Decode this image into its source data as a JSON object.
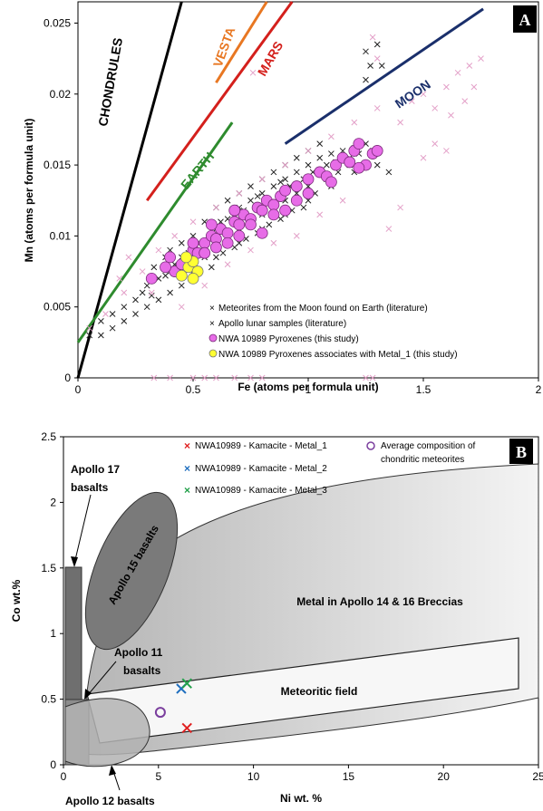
{
  "chart_data": [
    {
      "panel": "A",
      "type": "scatter",
      "xlabel": "Fe (atoms per formula unit)",
      "ylabel": "Mn (atoms per formula unit)",
      "xlim": [
        0,
        2
      ],
      "ylim": [
        0,
        0.0265
      ],
      "xticks": [
        "0",
        "0.5",
        "1",
        "1.5",
        "2"
      ],
      "yticks": [
        "0",
        "0.005",
        "0.01",
        "0.015",
        "0.02",
        "0.025"
      ],
      "legend_position": "bottom-right",
      "trend_lines": [
        {
          "name": "CHONDRULES",
          "color": "#000000",
          "x": [
            0,
            0.45
          ],
          "y": [
            0,
            0.0265
          ]
        },
        {
          "name": "VESTA",
          "color": "#e87722",
          "x": [
            0.6,
            0.82
          ],
          "y": [
            0.0208,
            0.0265
          ]
        },
        {
          "name": "MARS",
          "color": "#d4201c",
          "x": [
            0.3,
            0.93
          ],
          "y": [
            0.0125,
            0.0265
          ]
        },
        {
          "name": "EARTH",
          "color": "#2e8b2e",
          "x": [
            0,
            0.67
          ],
          "y": [
            0.0025,
            0.018
          ]
        },
        {
          "name": "MOON",
          "color": "#1a2f6b",
          "x": [
            0.9,
            1.76
          ],
          "y": [
            0.0165,
            0.026
          ]
        }
      ],
      "series": [
        {
          "name": "Meteorites from the Moon found on Earth (literature)",
          "marker": "x",
          "color": "#222222",
          "points": [
            [
              0.05,
              0.003
            ],
            [
              0.1,
              0.004
            ],
            [
              0.15,
              0.0045
            ],
            [
              0.2,
              0.005
            ],
            [
              0.25,
              0.0055
            ],
            [
              0.28,
              0.006
            ],
            [
              0.3,
              0.0065
            ],
            [
              0.32,
              0.0058
            ],
            [
              0.35,
              0.007
            ],
            [
              0.38,
              0.0072
            ],
            [
              0.4,
              0.0075
            ],
            [
              0.42,
              0.008
            ],
            [
              0.45,
              0.0085
            ],
            [
              0.48,
              0.0088
            ],
            [
              0.5,
              0.009
            ],
            [
              0.52,
              0.0095
            ],
            [
              0.55,
              0.0092
            ],
            [
              0.58,
              0.01
            ],
            [
              0.6,
              0.0105
            ],
            [
              0.62,
              0.011
            ],
            [
              0.65,
              0.0112
            ],
            [
              0.68,
              0.0115
            ],
            [
              0.7,
              0.012
            ],
            [
              0.72,
              0.0118
            ],
            [
              0.75,
              0.0125
            ],
            [
              0.78,
              0.0128
            ],
            [
              0.8,
              0.013
            ],
            [
              0.82,
              0.0125
            ],
            [
              0.85,
              0.0135
            ],
            [
              0.88,
              0.0138
            ],
            [
              0.9,
              0.014
            ],
            [
              0.92,
              0.0135
            ],
            [
              0.95,
              0.0145
            ],
            [
              0.98,
              0.014
            ],
            [
              1.0,
              0.015
            ],
            [
              1.02,
              0.0145
            ],
            [
              1.05,
              0.0155
            ],
            [
              1.08,
              0.015
            ],
            [
              1.1,
              0.0158
            ],
            [
              1.12,
              0.0152
            ],
            [
              1.15,
              0.016
            ],
            [
              1.18,
              0.0155
            ],
            [
              1.2,
              0.0162
            ],
            [
              1.22,
              0.0158
            ],
            [
              1.25,
              0.0165
            ],
            [
              1.28,
              0.016
            ],
            [
              1.25,
              0.023
            ],
            [
              1.27,
              0.022
            ],
            [
              1.3,
              0.0235
            ],
            [
              1.25,
              0.021
            ],
            [
              1.32,
              0.022
            ],
            [
              0.45,
              0.0065
            ],
            [
              0.5,
              0.0075
            ],
            [
              0.55,
              0.0085
            ],
            [
              0.6,
              0.0095
            ],
            [
              0.65,
              0.01
            ],
            [
              0.7,
              0.0105
            ],
            [
              0.75,
              0.011
            ],
            [
              0.8,
              0.0115
            ],
            [
              0.85,
              0.012
            ],
            [
              0.9,
              0.0125
            ],
            [
              0.95,
              0.013
            ],
            [
              1.0,
              0.0135
            ],
            [
              0.35,
              0.0055
            ],
            [
              0.4,
              0.006
            ],
            [
              0.3,
              0.005
            ],
            [
              0.25,
              0.0045
            ],
            [
              0.2,
              0.004
            ],
            [
              0.15,
              0.0035
            ],
            [
              0.1,
              0.003
            ],
            [
              0.55,
              0.011
            ],
            [
              0.6,
              0.012
            ],
            [
              0.65,
              0.0125
            ],
            [
              0.7,
              0.013
            ],
            [
              0.75,
              0.0135
            ],
            [
              0.8,
              0.014
            ],
            [
              0.85,
              0.0145
            ],
            [
              0.9,
              0.015
            ],
            [
              0.95,
              0.0155
            ],
            [
              1.0,
              0.016
            ],
            [
              1.05,
              0.0165
            ],
            [
              0.5,
              0.01
            ],
            [
              0.45,
              0.0095
            ],
            [
              0.4,
              0.009
            ],
            [
              0.38,
              0.0085
            ],
            [
              0.33,
              0.0078
            ],
            [
              0.6,
              0.0085
            ],
            [
              0.7,
              0.0095
            ],
            [
              0.8,
              0.0105
            ],
            [
              0.9,
              0.0115
            ],
            [
              1.0,
              0.0125
            ],
            [
              1.1,
              0.0135
            ],
            [
              1.2,
              0.0145
            ],
            [
              1.3,
              0.015
            ],
            [
              1.35,
              0.0145
            ],
            [
              0.58,
              0.0078
            ],
            [
              0.63,
              0.0088
            ],
            [
              0.68,
              0.0092
            ],
            [
              0.73,
              0.0098
            ],
            [
              0.78,
              0.0102
            ],
            [
              0.83,
              0.0108
            ],
            [
              0.88,
              0.0112
            ],
            [
              0.93,
              0.0118
            ],
            [
              0.98,
              0.012
            ],
            [
              1.03,
              0.013
            ],
            [
              1.08,
              0.014
            ],
            [
              1.13,
              0.0145
            ],
            [
              1.18,
              0.015
            ]
          ]
        },
        {
          "name": "Apollo lunar samples (literature)",
          "marker": "x",
          "color": "#e3a0c8",
          "points": [
            [
              0.05,
              0.0035
            ],
            [
              0.12,
              0.0045
            ],
            [
              0.2,
              0.006
            ],
            [
              0.28,
              0.0075
            ],
            [
              0.35,
              0.009
            ],
            [
              0.42,
              0.01
            ],
            [
              0.5,
              0.011
            ],
            [
              0.6,
              0.012
            ],
            [
              0.7,
              0.013
            ],
            [
              0.8,
              0.014
            ],
            [
              0.9,
              0.015
            ],
            [
              1.0,
              0.016
            ],
            [
              1.1,
              0.017
            ],
            [
              1.2,
              0.018
            ],
            [
              1.3,
              0.019
            ],
            [
              1.4,
              0.018
            ],
            [
              1.5,
              0.02
            ],
            [
              1.55,
              0.019
            ],
            [
              1.6,
              0.0205
            ],
            [
              1.65,
              0.0215
            ],
            [
              1.7,
              0.022
            ],
            [
              1.72,
              0.0205
            ],
            [
              1.75,
              0.0225
            ],
            [
              1.68,
              0.0195
            ],
            [
              1.62,
              0.0185
            ],
            [
              1.45,
              0.0195
            ],
            [
              1.28,
              0.024
            ],
            [
              1.3,
              0.0225
            ],
            [
              0.33,
              0
            ],
            [
              0.4,
              0
            ],
            [
              0.5,
              0
            ],
            [
              0.55,
              0
            ],
            [
              0.6,
              0
            ],
            [
              0.68,
              0
            ],
            [
              0.75,
              0
            ],
            [
              0.8,
              0
            ],
            [
              1.25,
              0
            ],
            [
              1.28,
              0
            ],
            [
              0.32,
              0.006
            ],
            [
              0.45,
              0.005
            ],
            [
              0.55,
              0.0065
            ],
            [
              0.65,
              0.008
            ],
            [
              0.75,
              0.009
            ],
            [
              0.85,
              0.0095
            ],
            [
              0.95,
              0.01
            ],
            [
              1.05,
              0.0115
            ],
            [
              1.15,
              0.0125
            ],
            [
              0.22,
              0.0085
            ],
            [
              0.18,
              0.007
            ],
            [
              1.5,
              0.0155
            ],
            [
              1.55,
              0.0165
            ],
            [
              1.6,
              0.016
            ],
            [
              0.76,
              0.0215
            ],
            [
              1.4,
              0.012
            ],
            [
              1.35,
              0.0105
            ]
          ]
        },
        {
          "name": "NWA 10989 Pyroxenes (this study)",
          "marker": "circle",
          "color": "#e76ce7",
          "points": [
            [
              0.42,
              0.0075
            ],
            [
              0.45,
              0.008
            ],
            [
              0.48,
              0.0085
            ],
            [
              0.5,
              0.009
            ],
            [
              0.52,
              0.0088
            ],
            [
              0.55,
              0.0095
            ],
            [
              0.58,
              0.01
            ],
            [
              0.6,
              0.0098
            ],
            [
              0.62,
              0.0105
            ],
            [
              0.65,
              0.0102
            ],
            [
              0.68,
              0.011
            ],
            [
              0.7,
              0.0108
            ],
            [
              0.72,
              0.0115
            ],
            [
              0.75,
              0.0112
            ],
            [
              0.78,
              0.012
            ],
            [
              0.8,
              0.0118
            ],
            [
              0.82,
              0.0125
            ],
            [
              0.85,
              0.0122
            ],
            [
              0.88,
              0.0128
            ],
            [
              0.9,
              0.0132
            ],
            [
              0.95,
              0.0135
            ],
            [
              1.0,
              0.014
            ],
            [
              1.05,
              0.0145
            ],
            [
              1.08,
              0.0142
            ],
            [
              1.12,
              0.015
            ],
            [
              1.15,
              0.0155
            ],
            [
              1.18,
              0.0152
            ],
            [
              1.2,
              0.016
            ],
            [
              1.22,
              0.0165
            ],
            [
              1.25,
              0.015
            ],
            [
              1.28,
              0.0158
            ],
            [
              1.3,
              0.016
            ],
            [
              0.95,
              0.0125
            ],
            [
              1.0,
              0.013
            ],
            [
              0.4,
              0.0085
            ],
            [
              0.5,
              0.0095
            ],
            [
              0.55,
              0.0088
            ],
            [
              0.6,
              0.0092
            ],
            [
              0.65,
              0.0095
            ],
            [
              0.7,
              0.01
            ],
            [
              0.85,
              0.0115
            ],
            [
              0.9,
              0.0118
            ],
            [
              0.32,
              0.007
            ],
            [
              0.38,
              0.0078
            ],
            [
              0.68,
              0.0118
            ],
            [
              0.75,
              0.0108
            ],
            [
              1.1,
              0.0138
            ],
            [
              0.58,
              0.0108
            ],
            [
              0.8,
              0.0102
            ],
            [
              1.22,
              0.0148
            ]
          ]
        },
        {
          "name": "NWA 10989 Pyroxenes associates with Metal_1 (this study)",
          "marker": "circle",
          "color": "#ffff33",
          "points": [
            [
              0.45,
              0.0072
            ],
            [
              0.48,
              0.0078
            ],
            [
              0.5,
              0.0082
            ],
            [
              0.52,
              0.0075
            ],
            [
              0.5,
              0.007
            ],
            [
              0.47,
              0.0085
            ]
          ]
        }
      ]
    },
    {
      "panel": "B",
      "type": "scatter",
      "xlabel": "Ni wt. %",
      "ylabel": "Co wt.%",
      "xlim": [
        0,
        25
      ],
      "ylim": [
        0,
        2.5
      ],
      "xticks": [
        "0",
        "5",
        "10",
        "15",
        "20",
        "25"
      ],
      "yticks": [
        "0",
        "0.5",
        "1",
        "1.5",
        "2",
        "2.5"
      ],
      "legend_position": "top",
      "region_labels": [
        "Apollo 17 basalts",
        "Apollo 15 basalts",
        "Metal in Apollo 14 & 16 Breccias",
        "Apollo 11 basalts",
        "Meteoritic field",
        "Apollo 12 basalts"
      ],
      "series": [
        {
          "name": "NWA10989 - Kamacite - Metal_1",
          "marker": "x",
          "color": "#e02020",
          "x": [
            6.5
          ],
          "y": [
            0.28
          ]
        },
        {
          "name": "NWA10989 - Kamacite - Metal_2",
          "marker": "x",
          "color": "#1f6fbf",
          "x": [
            6.2
          ],
          "y": [
            0.58
          ]
        },
        {
          "name": "NWA10989 - Kamacite - Metal_3",
          "marker": "x",
          "color": "#22a04a",
          "x": [
            6.5
          ],
          "y": [
            0.62
          ]
        },
        {
          "name": "Average composition of chondritic meteorites",
          "marker": "circle-open",
          "color": "#7b3f9e",
          "x": [
            5.1
          ],
          "y": [
            0.4
          ]
        }
      ]
    }
  ],
  "panel_badges": {
    "a": "A",
    "b": "B"
  }
}
